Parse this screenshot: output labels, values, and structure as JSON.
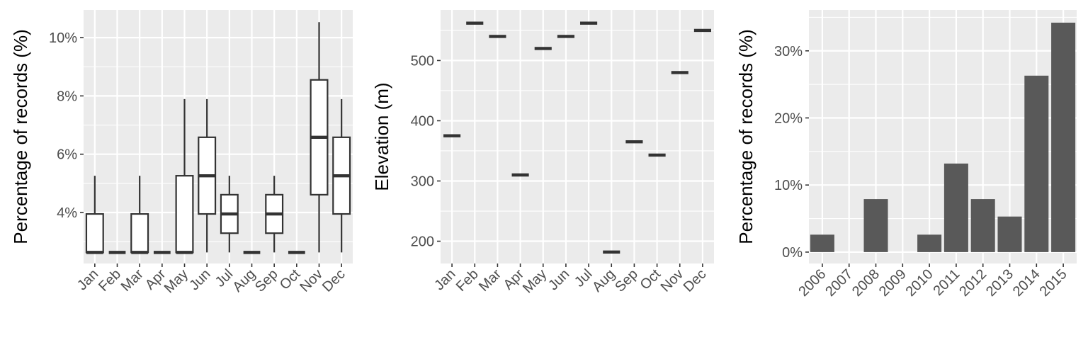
{
  "chart_data": [
    {
      "type": "box",
      "xlabel": "",
      "ylabel": "Percentage of records (%)",
      "ylim": [
        2.25,
        10.95
      ],
      "yticks": [
        4,
        6,
        8,
        10
      ],
      "ytick_labels": [
        "4%",
        "6%",
        "8%",
        "10%"
      ],
      "categories": [
        "Jan",
        "Feb",
        "Mar",
        "Apr",
        "May",
        "Jun",
        "Jul",
        "Aug",
        "Sep",
        "Oct",
        "Nov",
        "Dec"
      ],
      "boxes": [
        {
          "min": 2.63,
          "q1": 2.63,
          "median": 2.63,
          "q3": 3.95,
          "max": 5.26
        },
        {
          "min": 2.63,
          "q1": 2.63,
          "median": 2.63,
          "q3": 2.63,
          "max": 2.63
        },
        {
          "min": 2.63,
          "q1": 2.63,
          "median": 2.63,
          "q3": 3.95,
          "max": 5.26
        },
        {
          "min": 2.63,
          "q1": 2.63,
          "median": 2.63,
          "q3": 2.63,
          "max": 2.63
        },
        {
          "min": 2.63,
          "q1": 2.63,
          "median": 2.63,
          "q3": 5.26,
          "max": 7.89
        },
        {
          "min": 2.63,
          "q1": 3.95,
          "median": 5.26,
          "q3": 6.58,
          "max": 7.89
        },
        {
          "min": 2.63,
          "q1": 3.29,
          "median": 3.95,
          "q3": 4.61,
          "max": 5.26
        },
        {
          "min": 2.63,
          "q1": 2.63,
          "median": 2.63,
          "q3": 2.63,
          "max": 2.63
        },
        {
          "min": 2.63,
          "q1": 3.29,
          "median": 3.95,
          "q3": 4.61,
          "max": 5.26
        },
        {
          "min": 2.63,
          "q1": 2.63,
          "median": 2.63,
          "q3": 2.63,
          "max": 2.63
        },
        {
          "min": 2.63,
          "q1": 4.61,
          "median": 6.58,
          "q3": 8.55,
          "max": 10.53
        },
        {
          "min": 2.63,
          "q1": 3.95,
          "median": 5.26,
          "q3": 6.58,
          "max": 7.89
        }
      ]
    },
    {
      "type": "scatter",
      "xlabel": "",
      "ylabel": "Elevation (m)",
      "ylim": [
        163,
        584
      ],
      "yticks": [
        200,
        300,
        400,
        500
      ],
      "ytick_labels": [
        "200",
        "300",
        "400",
        "500"
      ],
      "categories": [
        "Jan",
        "Feb",
        "Mar",
        "Apr",
        "May",
        "Jun",
        "Jul",
        "Aug",
        "Sep",
        "Oct",
        "Nov",
        "Dec"
      ],
      "values": [
        375,
        562,
        540,
        310,
        520,
        540,
        562,
        182,
        365,
        343,
        480,
        550
      ]
    },
    {
      "type": "bar",
      "xlabel": "",
      "ylabel": "Percentage of records (%)",
      "ylim": [
        -1.7,
        36.1
      ],
      "yticks": [
        0,
        10,
        20,
        30
      ],
      "ytick_labels": [
        "0%",
        "10%",
        "20%",
        "30%"
      ],
      "categories": [
        "2006",
        "2007",
        "2008",
        "2009",
        "2010",
        "2011",
        "2012",
        "2013",
        "2014",
        "2015"
      ],
      "values": [
        2.6,
        0,
        7.9,
        0,
        2.6,
        13.2,
        7.9,
        5.3,
        26.3,
        34.2
      ]
    }
  ]
}
